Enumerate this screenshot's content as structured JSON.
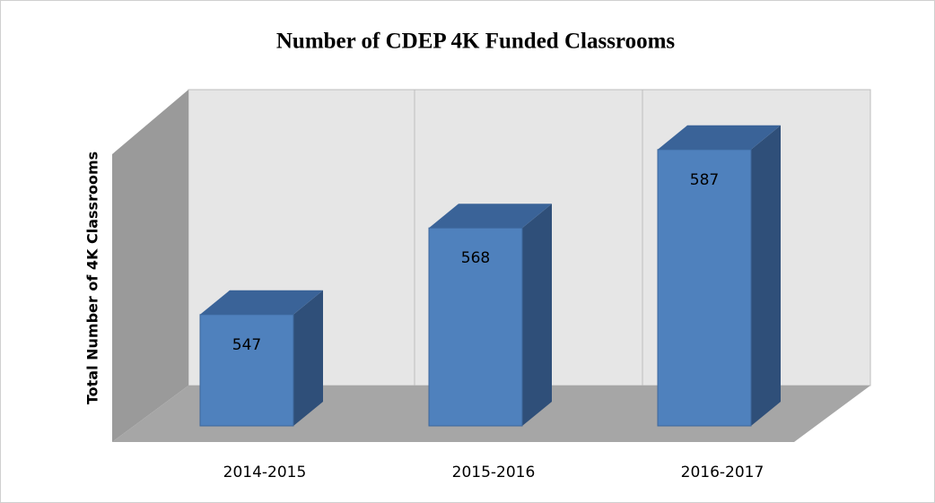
{
  "chart_data": {
    "type": "bar",
    "title": "Number  of CDEP 4K Funded  Classrooms",
    "y_label": "Total Number of 4K Classrooms",
    "categories": [
      "2014-2015",
      "2015-2016",
      "2016-2017"
    ],
    "values": [
      547,
      568,
      587
    ],
    "color": "#4f81bd",
    "ylim": [
      520,
      590
    ]
  }
}
